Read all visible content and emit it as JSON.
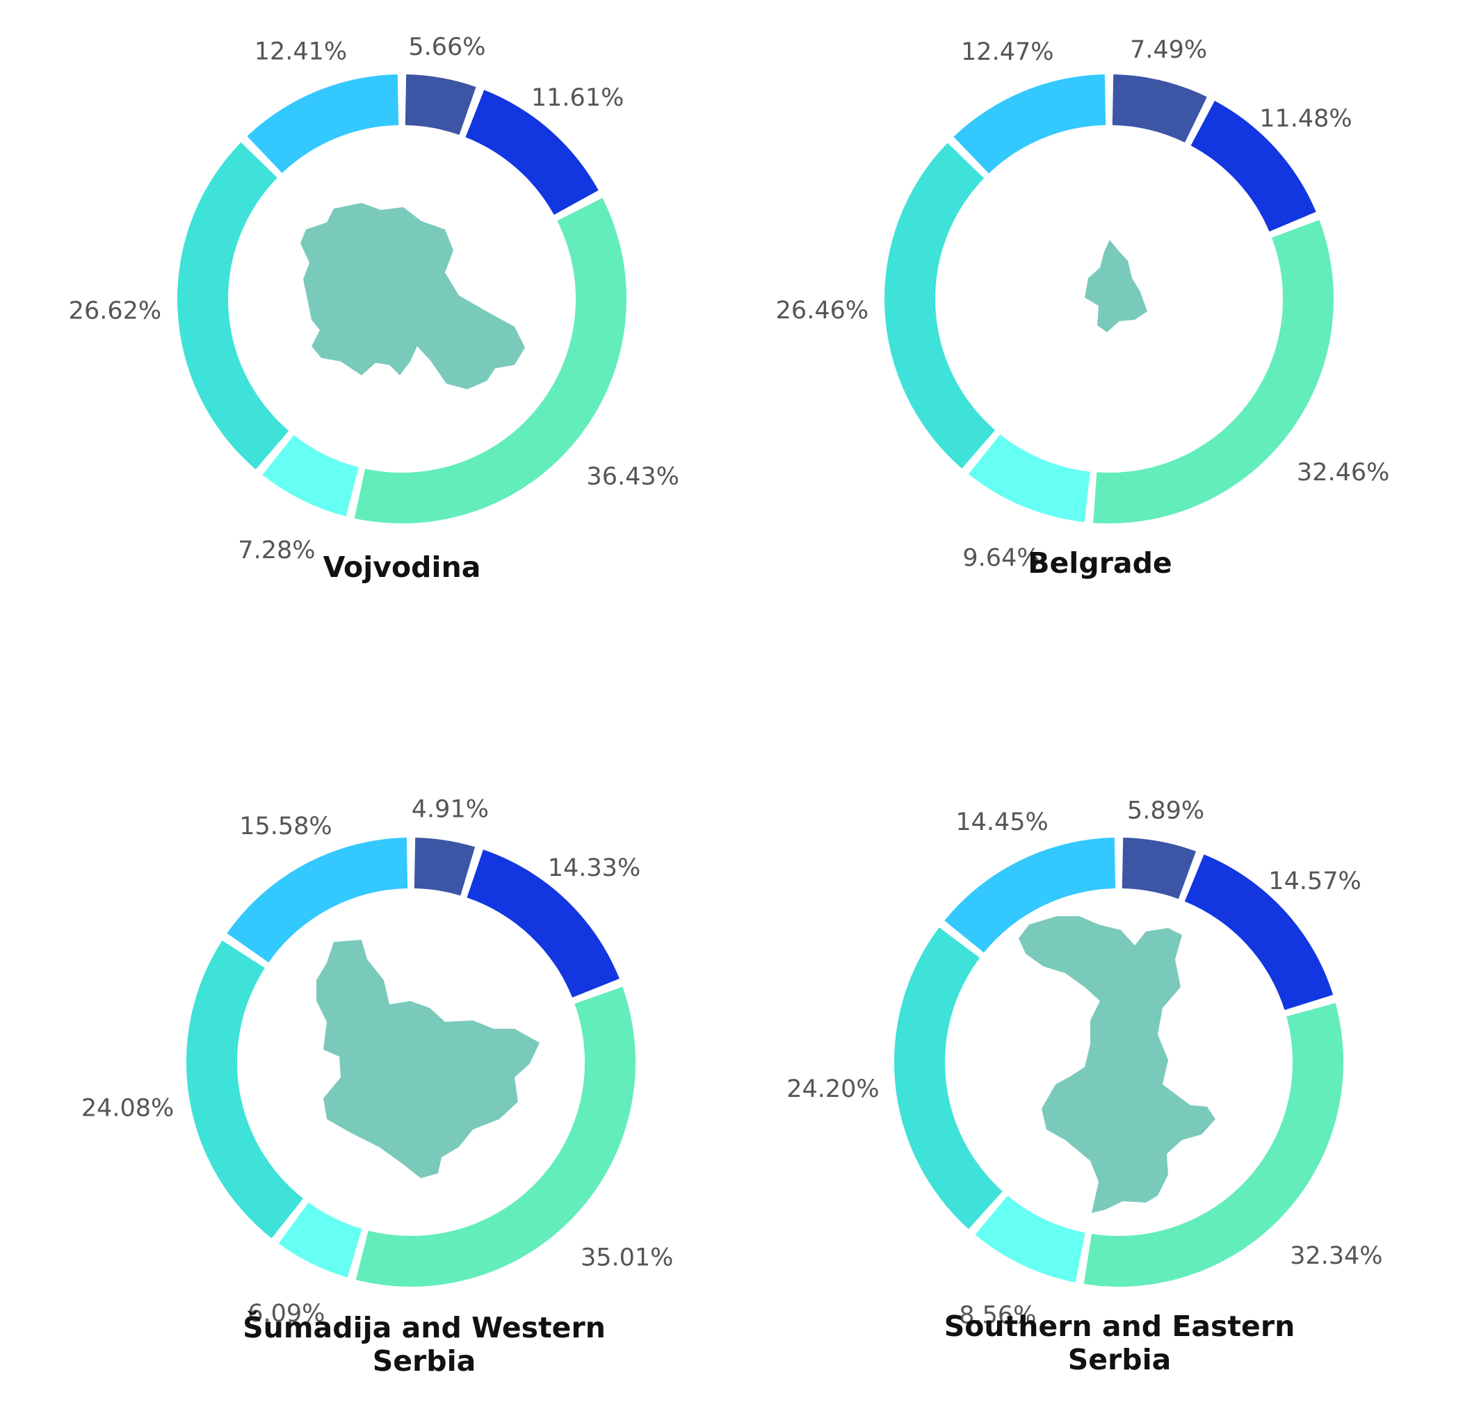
{
  "chart_data": [
    {
      "type": "pie",
      "title": "Vojvodina",
      "values": [
        5.66,
        11.61,
        36.43,
        7.28,
        26.62,
        12.41
      ],
      "labels": [
        "5.66%",
        "11.61%",
        "36.43%",
        "7.28%",
        "26.62%",
        "12.41%"
      ],
      "colors": [
        "#3d55a5",
        "#1236e0",
        "#63edbb",
        "#66fff4",
        "#3ee2d9",
        "#33c8fe"
      ],
      "region_icon": "vojvodina-map-icon"
    },
    {
      "type": "pie",
      "title": "Belgrade",
      "values": [
        7.49,
        11.48,
        32.46,
        9.64,
        26.46,
        12.47
      ],
      "labels": [
        "7.49%",
        "11.48%",
        "32.46%",
        "9.64%",
        "26.46%",
        "12.47%"
      ],
      "colors": [
        "#3d55a5",
        "#1236e0",
        "#63edbb",
        "#66fff4",
        "#3ee2d9",
        "#33c8fe"
      ],
      "region_icon": "belgrade-map-icon"
    },
    {
      "type": "pie",
      "title": "Šumadija and Western Serbia",
      "values": [
        4.91,
        14.33,
        35.01,
        6.09,
        24.08,
        15.58
      ],
      "labels": [
        "4.91%",
        "14.33%",
        "35.01%",
        "6.09%",
        "24.08%",
        "15.58%"
      ],
      "colors": [
        "#3d55a5",
        "#1236e0",
        "#63edbb",
        "#66fff4",
        "#3ee2d9",
        "#33c8fe"
      ],
      "region_icon": "sumadija-map-icon"
    },
    {
      "type": "pie",
      "title": "Southern and Eastern Serbia",
      "values": [
        5.89,
        14.57,
        32.34,
        8.56,
        24.2,
        14.45
      ],
      "labels": [
        "5.89%",
        "14.57%",
        "32.34%",
        "8.56%",
        "24.20%",
        "14.45%"
      ],
      "colors": [
        "#3d55a5",
        "#1236e0",
        "#63edbb",
        "#66fff4",
        "#3ee2d9",
        "#33c8fe"
      ],
      "region_icon": "southern-eastern-map-icon"
    }
  ]
}
